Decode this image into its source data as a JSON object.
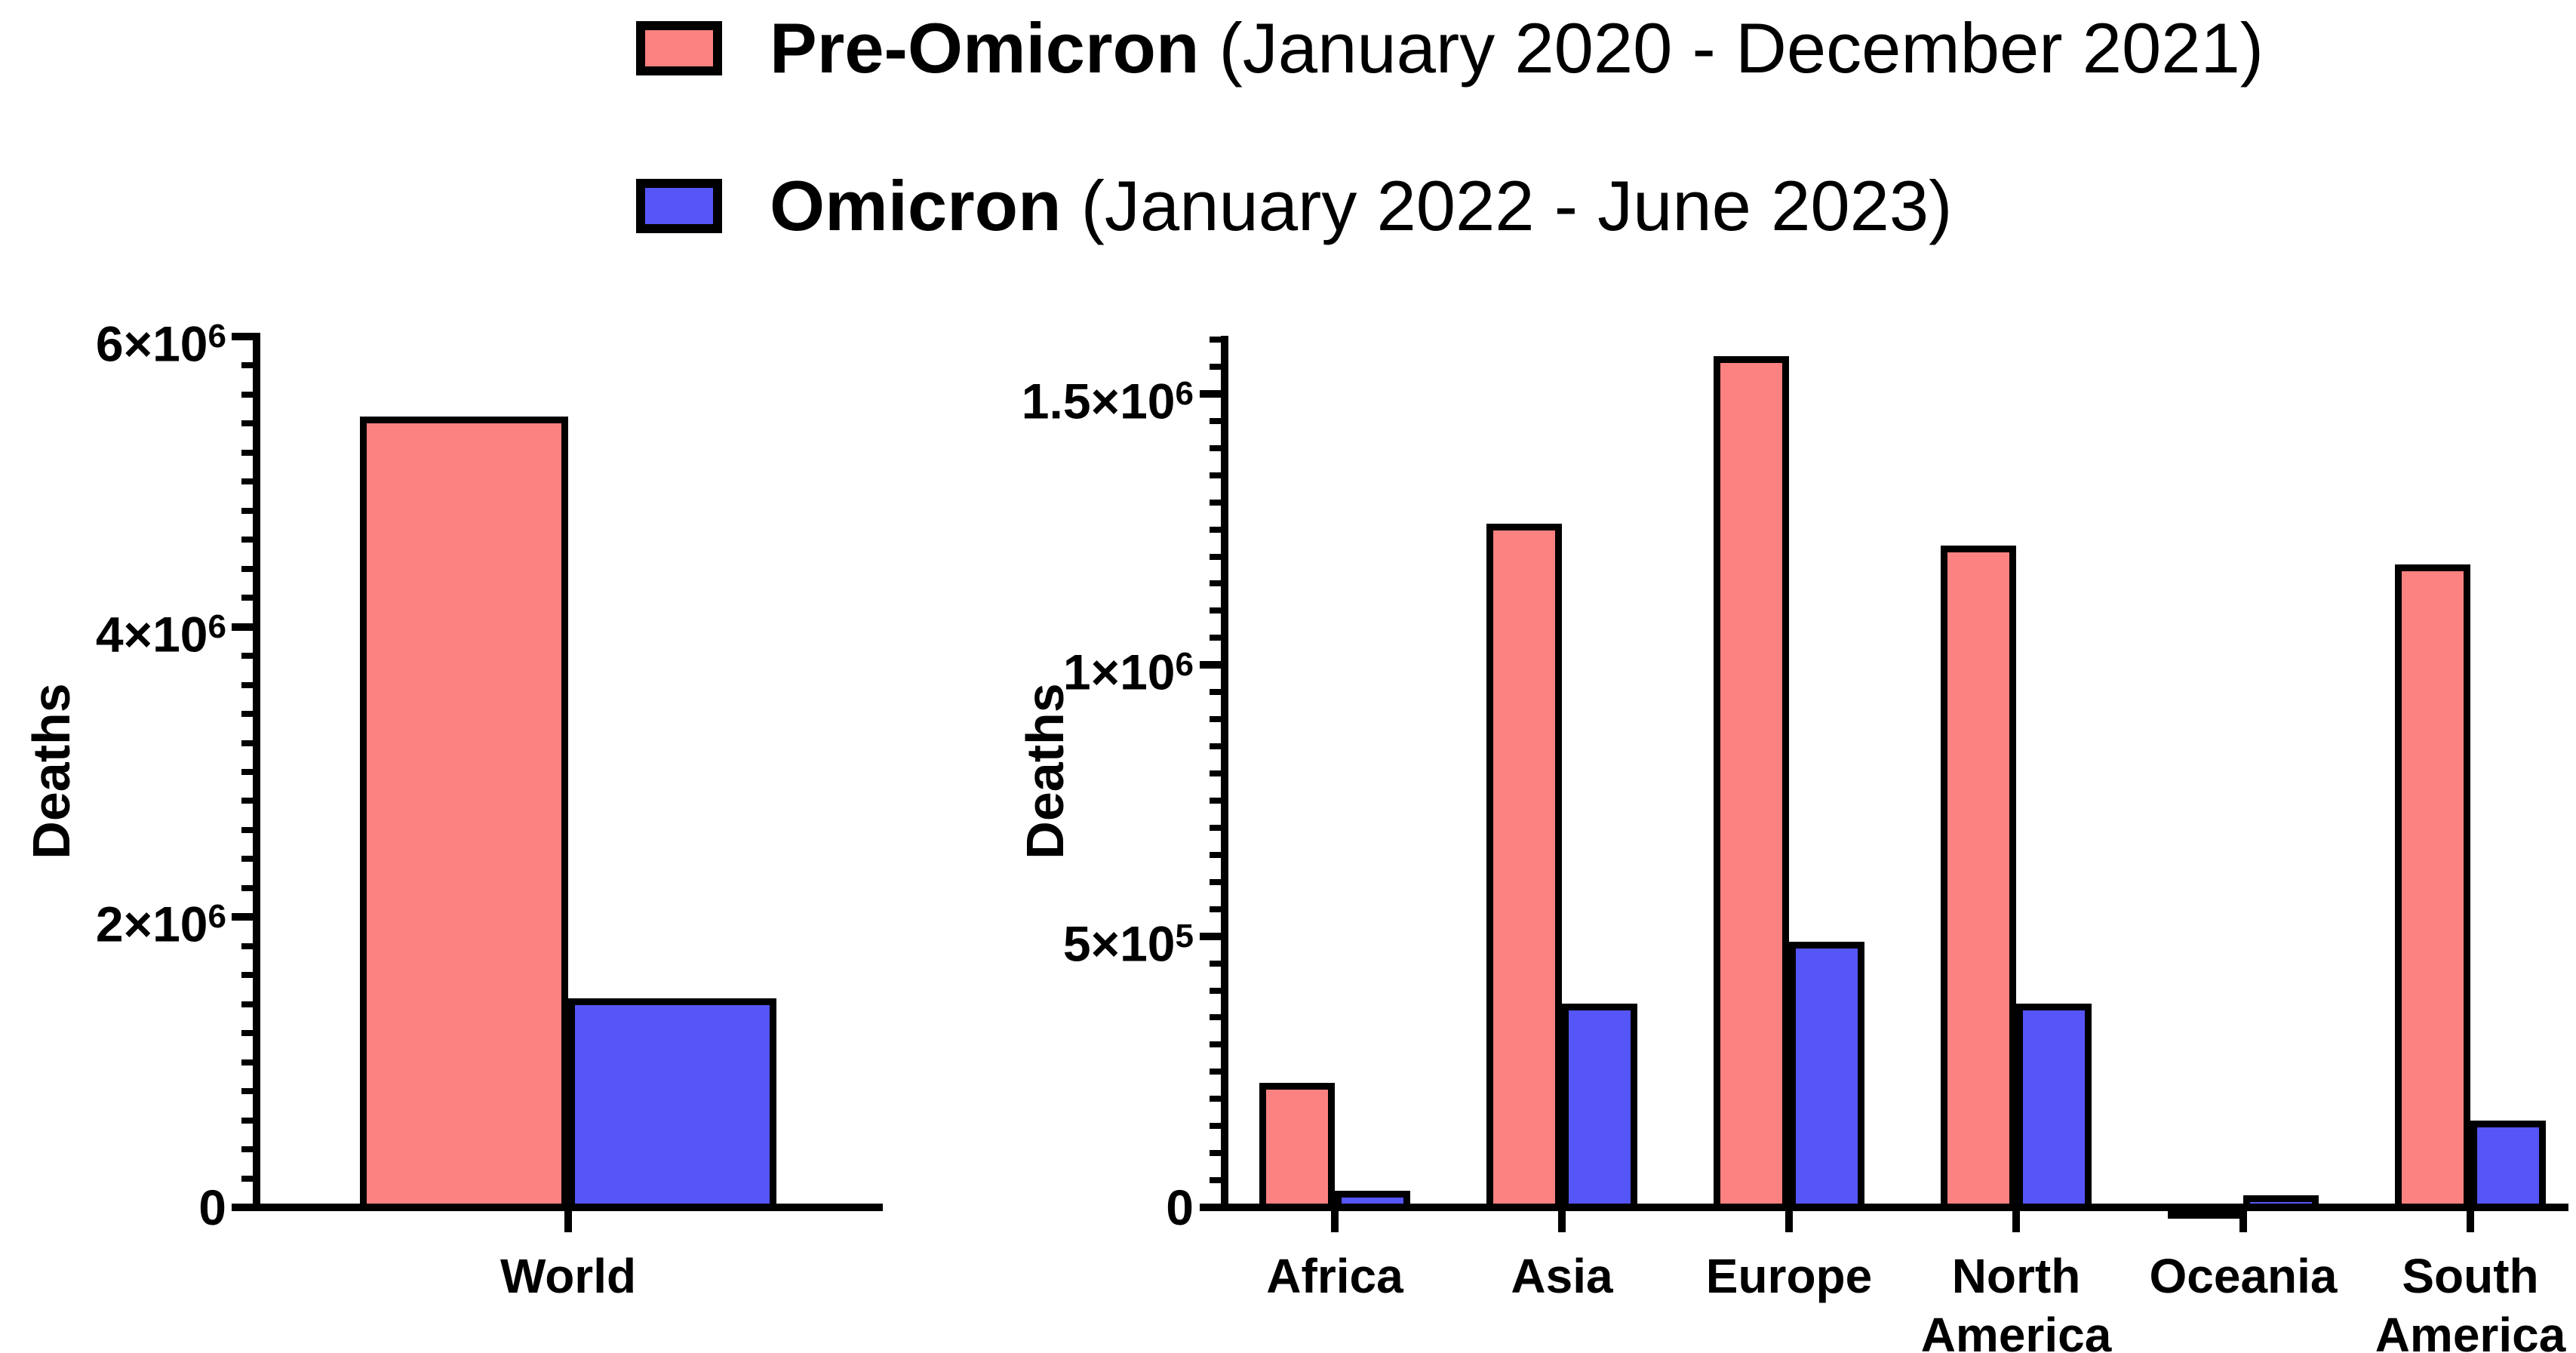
{
  "page": {
    "background": "#ffffff"
  },
  "colors": {
    "pre_omicron": "#FC8181",
    "omicron": "#5555F8",
    "axis": "#000000"
  },
  "legend": {
    "items": [
      {
        "label_bold": "Pre-Omicron",
        "label_rest": " (January 2020 - December 2021)",
        "color": "#FC8181"
      },
      {
        "label_bold": "Omicron",
        "label_rest": " (January 2022 - June 2023)",
        "color": "#5555F8"
      }
    ]
  },
  "chart_data": [
    {
      "type": "bar",
      "title": "",
      "ylabel": "Deaths",
      "categories": [
        [
          "World"
        ]
      ],
      "series": [
        {
          "name": "Pre-Omicron (January 2020 - December 2021)",
          "color": "#FC8181",
          "values": [
            5450000
          ]
        },
        {
          "name": "Omicron (January 2022 - June 2023)",
          "color": "#5555F8",
          "values": [
            1440000
          ]
        }
      ],
      "ylim": [
        0,
        6000000
      ],
      "yticks": [
        {
          "value": 0,
          "base": "0",
          "exp": ""
        },
        {
          "value": 2000000,
          "base": "2×10",
          "exp": "6"
        },
        {
          "value": 4000000,
          "base": "4×10",
          "exp": "6"
        },
        {
          "value": 6000000,
          "base": "6×10",
          "exp": "6"
        }
      ],
      "minor_tick_step": 200000,
      "grid": false,
      "legend_position": "top"
    },
    {
      "type": "bar",
      "title": "",
      "ylabel": "Deaths",
      "categories": [
        [
          "Africa"
        ],
        [
          "Asia"
        ],
        [
          "Europe"
        ],
        [
          "North",
          "America"
        ],
        [
          "Oceania"
        ],
        [
          "South",
          "America"
        ]
      ],
      "series": [
        {
          "name": "Pre-Omicron (January 2020 - December 2021)",
          "color": "#FC8181",
          "values": [
            230000,
            1260000,
            1570000,
            1220000,
            4000,
            1185000
          ]
        },
        {
          "name": "Omicron (January 2022 - June 2023)",
          "color": "#5555F8",
          "values": [
            30000,
            375000,
            490000,
            375000,
            22000,
            160000
          ]
        }
      ],
      "ylim": [
        0,
        1600000
      ],
      "yticks": [
        {
          "value": 0,
          "base": "0",
          "exp": ""
        },
        {
          "value": 500000,
          "base": "5×10",
          "exp": "5"
        },
        {
          "value": 1000000,
          "base": "1×10",
          "exp": "6"
        },
        {
          "value": 1500000,
          "base": "1.5×10",
          "exp": "6"
        }
      ],
      "minor_tick_step": 50000,
      "grid": false,
      "legend_position": "top"
    }
  ]
}
